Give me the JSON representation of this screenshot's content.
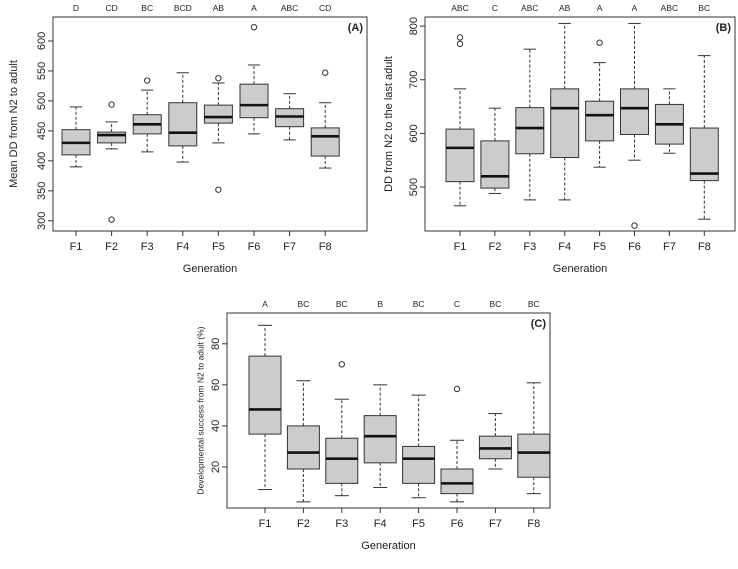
{
  "colors": {
    "box_fill": "#cccccc",
    "stroke": "#333333",
    "median": "#111111"
  },
  "chart_data": [
    {
      "type": "boxplot",
      "panel_label": "(A)",
      "xlabel": "Generation",
      "ylabel": "Mean DD from N2 to adult",
      "ylim": [
        283,
        640
      ],
      "yticks": [
        "300",
        "350",
        "400",
        "450",
        "500",
        "550",
        "600"
      ],
      "yticks_values": [
        300,
        350,
        400,
        450,
        500,
        550,
        600
      ],
      "categories": [
        "F1",
        "F2",
        "F3",
        "F4",
        "F5",
        "F6",
        "F7",
        "F8"
      ],
      "letters": [
        "D",
        "CD",
        "BC",
        "BCD",
        "AB",
        "A",
        "ABC",
        "CD"
      ],
      "boxes": [
        {
          "whislo": 390,
          "q1": 410,
          "med": 430,
          "q3": 452,
          "whishi": 490,
          "fliers": []
        },
        {
          "whislo": 420,
          "q1": 430,
          "med": 443,
          "q3": 448,
          "whishi": 465,
          "fliers": [
            302,
            494
          ]
        },
        {
          "whislo": 415,
          "q1": 445,
          "med": 461,
          "q3": 477,
          "whishi": 518,
          "fliers": [
            534
          ]
        },
        {
          "whislo": 398,
          "q1": 425,
          "med": 447,
          "q3": 497,
          "whishi": 547,
          "fliers": []
        },
        {
          "whislo": 430,
          "q1": 463,
          "med": 473,
          "q3": 493,
          "whishi": 530,
          "fliers": [
            352,
            538
          ]
        },
        {
          "whislo": 445,
          "q1": 472,
          "med": 493,
          "q3": 528,
          "whishi": 560,
          "fliers": [
            623
          ]
        },
        {
          "whislo": 435,
          "q1": 457,
          "med": 474,
          "q3": 487,
          "whishi": 512,
          "fliers": []
        },
        {
          "whislo": 388,
          "q1": 408,
          "med": 441,
          "q3": 455,
          "whishi": 497,
          "fliers": [
            547
          ]
        }
      ]
    },
    {
      "type": "boxplot",
      "panel_label": "(B)",
      "xlabel": "Generation",
      "ylabel": "DD from N2 to the last adult",
      "ylim": [
        418,
        817
      ],
      "yticks": [
        "500",
        "600",
        "700",
        "800"
      ],
      "yticks_values": [
        500,
        600,
        700,
        800
      ],
      "categories": [
        "F1",
        "F2",
        "F3",
        "F4",
        "F5",
        "F6",
        "F7",
        "F8"
      ],
      "letters": [
        "ABC",
        "C",
        "ABC",
        "AB",
        "A",
        "A",
        "ABC",
        "BC"
      ],
      "boxes": [
        {
          "whislo": 465,
          "q1": 510,
          "med": 573,
          "q3": 608,
          "whishi": 683,
          "fliers": [
            767,
            779
          ]
        },
        {
          "whislo": 488,
          "q1": 498,
          "med": 520,
          "q3": 586,
          "whishi": 647,
          "fliers": []
        },
        {
          "whislo": 476,
          "q1": 562,
          "med": 610,
          "q3": 648,
          "whishi": 757,
          "fliers": []
        },
        {
          "whislo": 476,
          "q1": 555,
          "med": 647,
          "q3": 683,
          "whishi": 805,
          "fliers": []
        },
        {
          "whislo": 537,
          "q1": 586,
          "med": 634,
          "q3": 660,
          "whishi": 732,
          "fliers": [
            769
          ]
        },
        {
          "whislo": 550,
          "q1": 598,
          "med": 647,
          "q3": 683,
          "whishi": 805,
          "fliers": [
            428
          ]
        },
        {
          "whislo": 563,
          "q1": 580,
          "med": 617,
          "q3": 654,
          "whishi": 683,
          "fliers": []
        },
        {
          "whislo": 440,
          "q1": 512,
          "med": 525,
          "q3": 610,
          "whishi": 745,
          "fliers": []
        }
      ]
    },
    {
      "type": "boxplot",
      "panel_label": "(C)",
      "xlabel": "Generation",
      "ylabel": "Developmental success from N2 to adult (%)",
      "ylim": [
        0,
        95
      ],
      "yticks": [
        "20",
        "40",
        "60",
        "80"
      ],
      "yticks_values": [
        20,
        40,
        60,
        80
      ],
      "categories": [
        "F1",
        "F2",
        "F3",
        "F4",
        "F5",
        "F6",
        "F7",
        "F8"
      ],
      "letters": [
        "A",
        "BC",
        "BC",
        "B",
        "BC",
        "C",
        "BC",
        "BC"
      ],
      "boxes": [
        {
          "whislo": 9,
          "q1": 36,
          "med": 48,
          "q3": 74,
          "whishi": 89,
          "fliers": []
        },
        {
          "whislo": 3,
          "q1": 19,
          "med": 27,
          "q3": 40,
          "whishi": 62,
          "fliers": []
        },
        {
          "whislo": 6,
          "q1": 12,
          "med": 24,
          "q3": 34,
          "whishi": 53,
          "fliers": [
            70
          ]
        },
        {
          "whislo": 10,
          "q1": 22,
          "med": 35,
          "q3": 45,
          "whishi": 60,
          "fliers": []
        },
        {
          "whislo": 5,
          "q1": 12,
          "med": 24,
          "q3": 30,
          "whishi": 55,
          "fliers": []
        },
        {
          "whislo": 3,
          "q1": 7,
          "med": 12,
          "q3": 19,
          "whishi": 33,
          "fliers": [
            58
          ]
        },
        {
          "whislo": 19,
          "q1": 24,
          "med": 29,
          "q3": 35,
          "whishi": 46,
          "fliers": []
        },
        {
          "whislo": 7,
          "q1": 15,
          "med": 27,
          "q3": 36,
          "whishi": 61,
          "fliers": []
        }
      ]
    }
  ]
}
